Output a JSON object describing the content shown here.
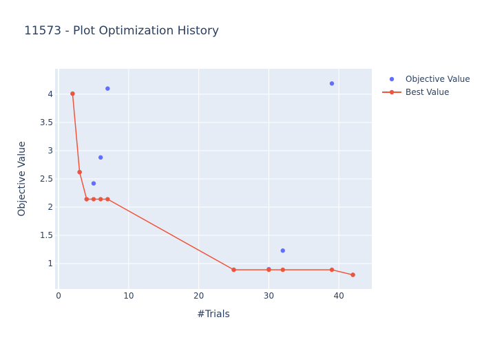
{
  "chart_data": {
    "type": "scatter",
    "title": "11573 - Plot Optimization History",
    "xlabel": "#Trials",
    "ylabel": "Objective Value",
    "xlim": [
      -0.5,
      44.7
    ],
    "ylim": [
      0.55,
      4.45
    ],
    "x_ticks": [
      0,
      10,
      20,
      30,
      40
    ],
    "x_tick_labels": [
      "0",
      "10",
      "20",
      "30",
      "40"
    ],
    "y_ticks": [
      1,
      1.5,
      2,
      2.5,
      3,
      3.5,
      4
    ],
    "y_tick_labels": [
      "1",
      "1.5",
      "2",
      "2.5",
      "3",
      "3.5",
      "4"
    ],
    "grid": true,
    "legend_position": "top-right",
    "series": [
      {
        "name": "Objective Value",
        "mode": "markers",
        "color": "#636efa",
        "x": [
          2,
          3,
          4,
          5,
          6,
          7,
          25,
          30,
          32,
          39,
          42
        ],
        "y": [
          4.01,
          2.62,
          2.14,
          2.42,
          2.88,
          4.1,
          0.89,
          0.9,
          1.23,
          4.19,
          0.8
        ]
      },
      {
        "name": "Best Value",
        "mode": "lines+markers",
        "color": "#ef553b",
        "x": [
          2,
          3,
          4,
          5,
          6,
          7,
          25,
          30,
          32,
          39,
          42
        ],
        "y": [
          4.01,
          2.62,
          2.14,
          2.14,
          2.14,
          2.14,
          0.89,
          0.89,
          0.89,
          0.89,
          0.8
        ]
      }
    ]
  }
}
